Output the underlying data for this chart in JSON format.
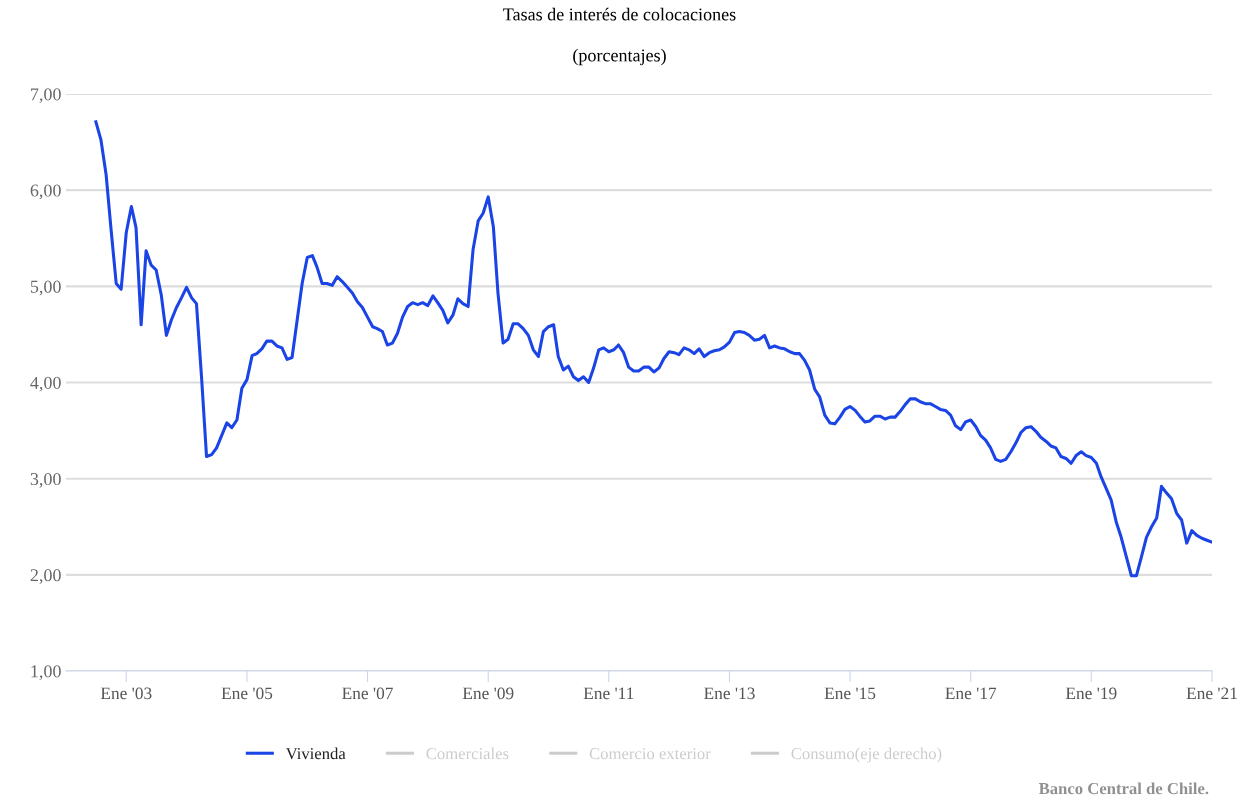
{
  "chart_data": {
    "type": "line",
    "title": "Tasas de interés de colocaciones",
    "subtitle": "(porcentajes)",
    "x": [
      "2002-07",
      "2002-08",
      "2002-09",
      "2002-10",
      "2002-11",
      "2002-12",
      "2003-01",
      "2003-02",
      "2003-03",
      "2003-04",
      "2003-05",
      "2003-06",
      "2003-07",
      "2003-08",
      "2003-09",
      "2003-10",
      "2003-11",
      "2003-12",
      "2004-01",
      "2004-02",
      "2004-03",
      "2004-04",
      "2004-05",
      "2004-06",
      "2004-07",
      "2004-08",
      "2004-09",
      "2004-10",
      "2004-11",
      "2004-12",
      "2005-01",
      "2005-02",
      "2005-03",
      "2005-04",
      "2005-05",
      "2005-06",
      "2005-07",
      "2005-08",
      "2005-09",
      "2005-10",
      "2005-11",
      "2005-12",
      "2006-01",
      "2006-02",
      "2006-03",
      "2006-04",
      "2006-05",
      "2006-06",
      "2006-07",
      "2006-08",
      "2006-09",
      "2006-10",
      "2006-11",
      "2006-12",
      "2007-01",
      "2007-02",
      "2007-03",
      "2007-04",
      "2007-05",
      "2007-06",
      "2007-07",
      "2007-08",
      "2007-09",
      "2007-10",
      "2007-11",
      "2007-12",
      "2008-01",
      "2008-02",
      "2008-03",
      "2008-04",
      "2008-05",
      "2008-06",
      "2008-07",
      "2008-08",
      "2008-09",
      "2008-10",
      "2008-11",
      "2008-12",
      "2009-01",
      "2009-02",
      "2009-03",
      "2009-04",
      "2009-05",
      "2009-06",
      "2009-07",
      "2009-08",
      "2009-09",
      "2009-10",
      "2009-11",
      "2009-12",
      "2010-01",
      "2010-02",
      "2010-03",
      "2010-04",
      "2010-05",
      "2010-06",
      "2010-07",
      "2010-08",
      "2010-09",
      "2010-10",
      "2010-11",
      "2010-12",
      "2011-01",
      "2011-02",
      "2011-03",
      "2011-04",
      "2011-05",
      "2011-06",
      "2011-07",
      "2011-08",
      "2011-09",
      "2011-10",
      "2011-11",
      "2011-12",
      "2012-01",
      "2012-02",
      "2012-03",
      "2012-04",
      "2012-05",
      "2012-06",
      "2012-07",
      "2012-08",
      "2012-09",
      "2012-10",
      "2012-11",
      "2012-12",
      "2013-01",
      "2013-02",
      "2013-03",
      "2013-04",
      "2013-05",
      "2013-06",
      "2013-07",
      "2013-08",
      "2013-09",
      "2013-10",
      "2013-11",
      "2013-12",
      "2014-01",
      "2014-02",
      "2014-03",
      "2014-04",
      "2014-05",
      "2014-06",
      "2014-07",
      "2014-08",
      "2014-09",
      "2014-10",
      "2014-11",
      "2014-12",
      "2015-01",
      "2015-02",
      "2015-03",
      "2015-04",
      "2015-05",
      "2015-06",
      "2015-07",
      "2015-08",
      "2015-09",
      "2015-10",
      "2015-11",
      "2015-12",
      "2016-01",
      "2016-02",
      "2016-03",
      "2016-04",
      "2016-05",
      "2016-06",
      "2016-07",
      "2016-08",
      "2016-09",
      "2016-10",
      "2016-11",
      "2016-12",
      "2017-01",
      "2017-02",
      "2017-03",
      "2017-04",
      "2017-05",
      "2017-06",
      "2017-07",
      "2017-08",
      "2017-09",
      "2017-10",
      "2017-11",
      "2017-12",
      "2018-01",
      "2018-02",
      "2018-03",
      "2018-04",
      "2018-05",
      "2018-06",
      "2018-07",
      "2018-08",
      "2018-09",
      "2018-10",
      "2018-11",
      "2018-12",
      "2019-01",
      "2019-02",
      "2019-03",
      "2019-04",
      "2019-05",
      "2019-06",
      "2019-07",
      "2019-08",
      "2019-09",
      "2019-10",
      "2019-11",
      "2019-12",
      "2020-01",
      "2020-02",
      "2020-03",
      "2020-04",
      "2020-05",
      "2020-06",
      "2020-07",
      "2020-08",
      "2020-09",
      "2020-10",
      "2020-11",
      "2020-12",
      "2021-01"
    ],
    "series": [
      {
        "name": "Vivienda",
        "color": "#1a44e6",
        "values": [
          6.71,
          6.52,
          6.16,
          5.59,
          5.03,
          4.97,
          5.56,
          5.83,
          5.61,
          4.6,
          5.37,
          5.22,
          5.17,
          4.91,
          4.49,
          4.65,
          4.78,
          4.88,
          4.99,
          4.88,
          4.82,
          4.05,
          3.23,
          3.25,
          3.32,
          3.45,
          3.58,
          3.53,
          3.61,
          3.94,
          4.03,
          4.28,
          4.3,
          4.35,
          4.43,
          4.43,
          4.38,
          4.36,
          4.24,
          4.26,
          4.65,
          5.03,
          5.3,
          5.32,
          5.2,
          5.03,
          5.03,
          5.01,
          5.1,
          5.05,
          4.99,
          4.93,
          4.84,
          4.78,
          4.68,
          4.58,
          4.56,
          4.53,
          4.39,
          4.41,
          4.51,
          4.68,
          4.79,
          4.83,
          4.81,
          4.83,
          4.8,
          4.9,
          4.83,
          4.75,
          4.62,
          4.7,
          4.87,
          4.82,
          4.79,
          5.38,
          5.68,
          5.76,
          5.93,
          5.62,
          4.93,
          4.41,
          4.45,
          4.61,
          4.61,
          4.56,
          4.49,
          4.34,
          4.27,
          4.53,
          4.58,
          4.6,
          4.27,
          4.13,
          4.17,
          4.06,
          4.02,
          4.06,
          4.0,
          4.15,
          4.34,
          4.36,
          4.32,
          4.34,
          4.39,
          4.31,
          4.16,
          4.12,
          4.12,
          4.16,
          4.16,
          4.11,
          4.15,
          4.25,
          4.32,
          4.31,
          4.29,
          4.36,
          4.34,
          4.3,
          4.35,
          4.27,
          4.31,
          4.33,
          4.34,
          4.37,
          4.42,
          4.52,
          4.53,
          4.52,
          4.49,
          4.44,
          4.45,
          4.49,
          4.36,
          4.38,
          4.36,
          4.35,
          4.32,
          4.3,
          4.3,
          4.23,
          4.13,
          3.93,
          3.85,
          3.66,
          3.58,
          3.57,
          3.64,
          3.72,
          3.75,
          3.71,
          3.65,
          3.59,
          3.6,
          3.65,
          3.65,
          3.62,
          3.64,
          3.64,
          3.7,
          3.77,
          3.83,
          3.83,
          3.8,
          3.78,
          3.78,
          3.75,
          3.72,
          3.71,
          3.66,
          3.55,
          3.51,
          3.59,
          3.61,
          3.54,
          3.45,
          3.4,
          3.32,
          3.2,
          3.18,
          3.2,
          3.28,
          3.37,
          3.48,
          3.53,
          3.54,
          3.49,
          3.43,
          3.39,
          3.34,
          3.32,
          3.23,
          3.21,
          3.16,
          3.24,
          3.28,
          3.24,
          3.22,
          3.16,
          3.02,
          2.9,
          2.78,
          2.55,
          2.39,
          2.19,
          1.99,
          1.99,
          2.19,
          2.39,
          2.5,
          2.59,
          2.92,
          2.85,
          2.79,
          2.64,
          2.57,
          2.33,
          2.46,
          2.41,
          2.38,
          2.36,
          2.34
        ]
      },
      {
        "name": "Comerciales",
        "color": "#cccccc",
        "values": [
          null,
          null,
          null,
          null,
          null,
          null,
          null,
          null,
          null,
          null,
          null,
          null,
          null,
          null,
          null,
          null,
          null,
          null,
          null,
          null,
          null,
          null,
          null,
          null,
          null,
          null,
          null,
          null,
          null,
          null,
          null,
          null,
          null,
          null,
          null,
          null,
          null,
          null,
          null,
          null,
          null,
          null,
          null,
          null,
          null,
          null,
          null,
          null,
          null,
          null,
          null,
          null,
          null,
          null,
          null,
          null,
          null,
          null,
          null,
          null,
          null,
          null,
          null,
          null,
          null,
          null,
          null,
          null,
          null,
          null,
          null,
          null,
          null,
          null,
          null,
          null,
          null,
          null,
          null,
          null,
          null,
          null,
          null,
          null,
          null,
          null,
          null,
          null,
          null,
          null,
          null,
          null,
          null,
          null,
          null,
          null,
          null,
          null,
          null,
          null,
          null,
          null,
          null,
          null,
          null,
          null,
          null,
          null,
          null,
          null,
          null,
          null,
          null,
          null,
          null,
          null,
          null,
          null,
          null,
          null,
          null,
          null,
          null,
          null,
          null,
          null,
          null,
          null,
          null,
          null,
          null,
          null,
          null,
          null,
          null,
          null,
          null,
          null,
          null,
          null,
          null,
          null,
          null,
          null,
          null,
          null,
          null,
          null,
          null,
          null,
          null,
          null,
          null,
          null,
          null,
          null,
          null,
          null,
          null,
          null,
          null,
          null,
          null,
          null,
          null,
          null,
          null,
          null,
          null,
          null,
          null,
          null,
          null,
          null,
          null,
          null,
          null,
          null,
          null,
          null,
          null,
          null,
          null,
          null,
          null,
          null,
          null,
          null,
          null,
          null,
          null,
          null,
          null,
          null,
          null,
          null,
          null,
          null,
          null,
          null,
          null,
          null,
          null,
          null,
          null,
          null,
          null,
          null,
          null,
          null,
          null,
          null,
          null,
          null,
          null,
          null,
          null,
          null,
          null,
          null,
          null,
          null,
          null
        ]
      },
      {
        "name": "Comercio exterior",
        "color": "#cccccc",
        "values": [
          null,
          null,
          null,
          null,
          null,
          null,
          null,
          null,
          null,
          null,
          null,
          null,
          null,
          null,
          null,
          null,
          null,
          null,
          null,
          null,
          null,
          null,
          null,
          null,
          null,
          null,
          null,
          null,
          null,
          null,
          null,
          null,
          null,
          null,
          null,
          null,
          null,
          null,
          null,
          null,
          null,
          null,
          null,
          null,
          null,
          null,
          null,
          null,
          null,
          null,
          null,
          null,
          null,
          null,
          null,
          null,
          null,
          null,
          null,
          null,
          null,
          null,
          null,
          null,
          null,
          null,
          null,
          null,
          null,
          null,
          null,
          null,
          null,
          null,
          null,
          null,
          null,
          null,
          null,
          null,
          null,
          null,
          null,
          null,
          null,
          null,
          null,
          null,
          null,
          null,
          null,
          null,
          null,
          null,
          null,
          null,
          null,
          null,
          null,
          null,
          null,
          null,
          null,
          null,
          null,
          null,
          null,
          null,
          null,
          null,
          null,
          null,
          null,
          null,
          null,
          null,
          null,
          null,
          null,
          null,
          null,
          null,
          null,
          null,
          null,
          null,
          null,
          null,
          null,
          null,
          null,
          null,
          null,
          null,
          null,
          null,
          null,
          null,
          null,
          null,
          null,
          null,
          null,
          null,
          null,
          null,
          null,
          null,
          null,
          null,
          null,
          null,
          null,
          null,
          null,
          null,
          null,
          null,
          null,
          null,
          null,
          null,
          null,
          null,
          null,
          null,
          null,
          null,
          null,
          null,
          null,
          null,
          null,
          null,
          null,
          null,
          null,
          null,
          null,
          null,
          null,
          null,
          null,
          null,
          null,
          null,
          null,
          null,
          null,
          null,
          null,
          null,
          null,
          null,
          null,
          null,
          null,
          null,
          null,
          null,
          null,
          null,
          null,
          null,
          null,
          null,
          null,
          null,
          null,
          null,
          null,
          null,
          null,
          null,
          null,
          null,
          null,
          null,
          null,
          null,
          null,
          null,
          null
        ]
      },
      {
        "name": "Consumo(eje derecho)",
        "color": "#cccccc",
        "values": [
          null,
          null,
          null,
          null,
          null,
          null,
          null,
          null,
          null,
          null,
          null,
          null,
          null,
          null,
          null,
          null,
          null,
          null,
          null,
          null,
          null,
          null,
          null,
          null,
          null,
          null,
          null,
          null,
          null,
          null,
          null,
          null,
          null,
          null,
          null,
          null,
          null,
          null,
          null,
          null,
          null,
          null,
          null,
          null,
          null,
          null,
          null,
          null,
          null,
          null,
          null,
          null,
          null,
          null,
          null,
          null,
          null,
          null,
          null,
          null,
          null,
          null,
          null,
          null,
          null,
          null,
          null,
          null,
          null,
          null,
          null,
          null,
          null,
          null,
          null,
          null,
          null,
          null,
          null,
          null,
          null,
          null,
          null,
          null,
          null,
          null,
          null,
          null,
          null,
          null,
          null,
          null,
          null,
          null,
          null,
          null,
          null,
          null,
          null,
          null,
          null,
          null,
          null,
          null,
          null,
          null,
          null,
          null,
          null,
          null,
          null,
          null,
          null,
          null,
          null,
          null,
          null,
          null,
          null,
          null,
          null,
          null,
          null,
          null,
          null,
          null,
          null,
          null,
          null,
          null,
          null,
          null,
          null,
          null,
          null,
          null,
          null,
          null,
          null,
          null,
          null,
          null,
          null,
          null,
          null,
          null,
          null,
          null,
          null,
          null,
          null,
          null,
          null,
          null,
          null,
          null,
          null,
          null,
          null,
          null,
          null,
          null,
          null,
          null,
          null,
          null,
          null,
          null,
          null,
          null,
          null,
          null,
          null,
          null,
          null,
          null,
          null,
          null,
          null,
          null,
          null,
          null,
          null,
          null,
          null,
          null,
          null,
          null,
          null,
          null,
          null,
          null,
          null,
          null,
          null,
          null,
          null,
          null,
          null,
          null,
          null,
          null,
          null,
          null,
          null,
          null,
          null,
          null,
          null,
          null,
          null,
          null,
          null,
          null,
          null,
          null,
          null,
          null,
          null,
          null,
          null,
          null,
          null
        ]
      }
    ],
    "xlim": [
      "2002-01",
      "2021-01"
    ],
    "xticks": [
      {
        "value": "2003-01",
        "label": "Ene '03"
      },
      {
        "value": "2005-01",
        "label": "Ene '05"
      },
      {
        "value": "2007-01",
        "label": "Ene '07"
      },
      {
        "value": "2009-01",
        "label": "Ene '09"
      },
      {
        "value": "2011-01",
        "label": "Ene '11"
      },
      {
        "value": "2013-01",
        "label": "Ene '13"
      },
      {
        "value": "2015-01",
        "label": "Ene '15"
      },
      {
        "value": "2017-01",
        "label": "Ene '17"
      },
      {
        "value": "2019-01",
        "label": "Ene '19"
      },
      {
        "value": "2021-01",
        "label": "Ene '21"
      }
    ],
    "ylim": [
      1,
      7
    ],
    "yticks": [
      {
        "value": 1,
        "label": "1,00"
      },
      {
        "value": 2,
        "label": "2,00"
      },
      {
        "value": 3,
        "label": "3,00"
      },
      {
        "value": 4,
        "label": "4,00"
      },
      {
        "value": 5,
        "label": "5,00"
      },
      {
        "value": 6,
        "label": "6,00"
      },
      {
        "value": 7,
        "label": "7,00"
      }
    ],
    "grid": "y",
    "legend": "bottom",
    "marker": "none",
    "line_style": "solid",
    "annotations": [
      "Banco Central de Chile."
    ]
  }
}
